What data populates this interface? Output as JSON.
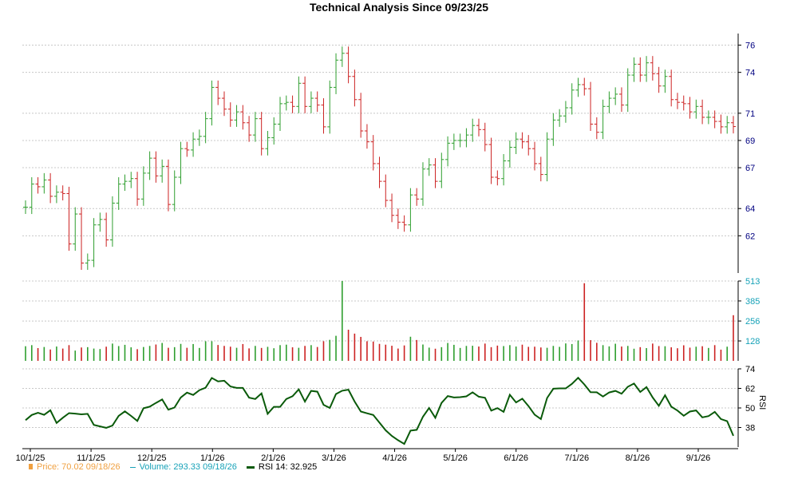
{
  "chart_data": {
    "type": "ohlc",
    "title": "Technical Analysis Since 09/23/25",
    "colors": {
      "up": "#2e9e2e",
      "down": "#cc2222",
      "price_axis": "#000080",
      "volume_axis": "#17a2b8",
      "rsi_line": "#0a5a0a",
      "grid": "#c8c8c8",
      "price_legend": "#f0a040",
      "volume_legend": "#17a2b8"
    },
    "x_ticks": [
      "10/1/25",
      "11/1/25",
      "12/1/25",
      "1/1/26",
      "2/1/26",
      "3/1/26",
      "4/1/26",
      "5/1/26",
      "6/1/26",
      "7/1/26",
      "8/1/26",
      "9/1/26"
    ],
    "price_panel": {
      "ylim": [
        59.5,
        76.5
      ],
      "ticks": [
        62,
        64,
        67,
        69,
        71,
        74,
        76
      ],
      "grid": true,
      "close": [
        64.1,
        65.8,
        65.6,
        66.1,
        64.9,
        65.2,
        65.1,
        61.4,
        63.6,
        60.0,
        60.2,
        62.8,
        63.2,
        61.7,
        64.4,
        65.8,
        66.0,
        66.2,
        64.7,
        66.6,
        67.7,
        66.4,
        67.1,
        64.3,
        66.3,
        68.4,
        68.3,
        69.1,
        69.3,
        70.6,
        72.9,
        72.1,
        71.3,
        70.5,
        71.1,
        70.3,
        69.4,
        70.6,
        68.4,
        69.2,
        70.2,
        71.7,
        71.8,
        71.5,
        73.2,
        71.5,
        72.1,
        71.6,
        70.0,
        72.9,
        74.9,
        75.4,
        73.7,
        72.0,
        69.7,
        68.9,
        67.3,
        66.0,
        64.6,
        63.5,
        63.0,
        62.8,
        65.0,
        64.7,
        66.9,
        67.2,
        66.0,
        67.6,
        68.8,
        69.0,
        69.0,
        69.4,
        70.1,
        69.8,
        68.7,
        66.3,
        66.2,
        67.5,
        68.5,
        69.1,
        68.9,
        68.4,
        67.3,
        66.5,
        69.1,
        70.5,
        70.8,
        71.4,
        72.7,
        73.1,
        72.8,
        70.2,
        69.6,
        71.5,
        72.1,
        72.4,
        71.6,
        73.8,
        74.6,
        73.8,
        74.7,
        73.9,
        73.0,
        73.7,
        72.0,
        71.8,
        71.7,
        71.1,
        71.5,
        70.7,
        70.7,
        70.4,
        70.0,
        70.3,
        70.02
      ],
      "ohlc_note": "highs and lows are drawn from close values"
    },
    "volume_panel": {
      "ylim": [
        0,
        513
      ],
      "ticks": [
        128,
        256,
        385,
        513
      ],
      "grid": true,
      "values": [
        94,
        101,
        82,
        89,
        73,
        92,
        79,
        101,
        66,
        86,
        88,
        79,
        76,
        91,
        111,
        95,
        103,
        87,
        75,
        89,
        96,
        105,
        115,
        84,
        88,
        109,
        84,
        108,
        83,
        126,
        126,
        102,
        96,
        91,
        84,
        108,
        80,
        96,
        83,
        90,
        81,
        101,
        104,
        87,
        84,
        96,
        101,
        89,
        126,
        135,
        161,
        513,
        200,
        175,
        154,
        126,
        124,
        109,
        104,
        97,
        79,
        99,
        155,
        134,
        105,
        85,
        78,
        88,
        115,
        103,
        83,
        96,
        97,
        92,
        111,
        88,
        98,
        95,
        101,
        92,
        104,
        90,
        91,
        86,
        84,
        96,
        90,
        112,
        108,
        131,
        499,
        133,
        116,
        101,
        93,
        110,
        92,
        96,
        78,
        88,
        82,
        111,
        95,
        94,
        87,
        81,
        100,
        85,
        91,
        94,
        83,
        101,
        72,
        91,
        293.33
      ]
    },
    "rsi_panel": {
      "ylim": [
        26,
        74
      ],
      "ticks": [
        38,
        50,
        62,
        74
      ],
      "label": "RSI",
      "grid": true,
      "values": [
        42.5,
        45.7,
        47.0,
        45.8,
        48.6,
        40.8,
        44.0,
        46.8,
        46.5,
        46.1,
        46.4,
        39.6,
        38.7,
        37.8,
        39.2,
        45.1,
        47.9,
        45.1,
        42.0,
        49.8,
        50.8,
        53.1,
        55.2,
        48.9,
        50.3,
        56.4,
        59.4,
        58.0,
        60.9,
        62.4,
        68.4,
        66.3,
        66.7,
        63.2,
        62.3,
        62.3,
        56.3,
        55.5,
        58.9,
        46.4,
        50.7,
        50.7,
        55.5,
        57.2,
        61.4,
        53.9,
        60.5,
        60.0,
        51.9,
        50.0,
        58.5,
        60.6,
        61.2,
        53.9,
        47.8,
        46.7,
        45.7,
        41.0,
        36.3,
        32.8,
        30.2,
        27.9,
        36.1,
        36.6,
        44.6,
        50.0,
        44.0,
        53.1,
        57.3,
        56.4,
        56.6,
        57.1,
        59.6,
        56.9,
        56.2,
        48.4,
        49.9,
        47.6,
        58.1,
        53.4,
        55.7,
        51.2,
        45.9,
        43.2,
        56.1,
        61.8,
        62.0,
        62.0,
        64.8,
        68.5,
        64.4,
        59.7,
        59.6,
        57.0,
        59.5,
        60.5,
        58.7,
        63.0,
        65.0,
        59.8,
        62.8,
        56.4,
        51.3,
        57.8,
        50.8,
        48.4,
        45.2,
        47.8,
        48.5,
        44.2,
        45.0,
        47.6,
        43.2,
        41.9,
        32.925
      ]
    },
    "legend": {
      "price": "Price: 70.02  09/18/26",
      "volume": "Volume: 293.33  09/18/26",
      "rsi": "RSI 14: 32.925"
    }
  }
}
